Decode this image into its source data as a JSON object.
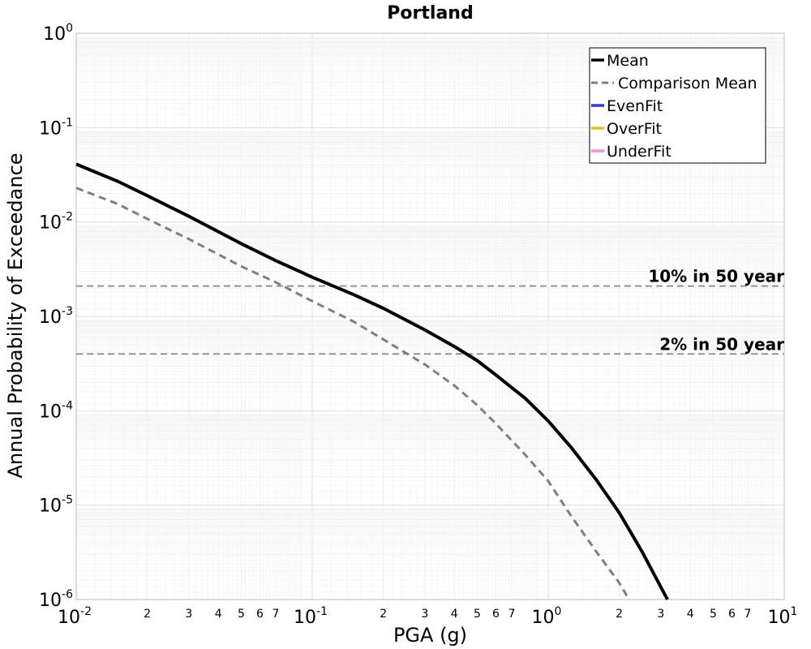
{
  "chart_data": {
    "type": "line",
    "title": "Portland",
    "xlabel": "PGA (g)",
    "ylabel": "Annual Probability of Exceedance",
    "xscale": "log",
    "yscale": "log",
    "xlim": [
      0.01,
      10
    ],
    "ylim": [
      1e-06,
      1
    ],
    "grid": true,
    "legend_position": "top-right",
    "x_major_ticks": [
      {
        "base": "10",
        "exp": "-2"
      },
      {
        "base": "10",
        "exp": "-1"
      },
      {
        "base": "10",
        "exp": "0"
      },
      {
        "base": "10",
        "exp": "1"
      }
    ],
    "y_major_ticks": [
      {
        "base": "10",
        "exp": "-6"
      },
      {
        "base": "10",
        "exp": "-5"
      },
      {
        "base": "10",
        "exp": "-4"
      },
      {
        "base": "10",
        "exp": "-3"
      },
      {
        "base": "10",
        "exp": "-2"
      },
      {
        "base": "10",
        "exp": "-1"
      },
      {
        "base": "10",
        "exp": "0"
      }
    ],
    "x_minor_tick_labels": [
      "2",
      "3",
      "4",
      "5",
      "6",
      "7"
    ],
    "series": [
      {
        "name": "Mean",
        "color": "#000000",
        "style": "solid",
        "x": [
          0.01,
          0.015,
          0.02,
          0.03,
          0.05,
          0.07,
          0.1,
          0.15,
          0.2,
          0.3,
          0.4,
          0.5,
          0.6,
          0.8,
          1.0,
          1.25,
          1.6,
          2.0,
          2.5,
          3.2
        ],
        "y": [
          0.041,
          0.027,
          0.019,
          0.0115,
          0.0059,
          0.0039,
          0.0026,
          0.0017,
          0.00122,
          0.00072,
          0.00048,
          0.00034,
          0.00024,
          0.000135,
          7.8e-05,
          4.1e-05,
          1.85e-05,
          8.3e-06,
          3.2e-06,
          1e-06
        ]
      },
      {
        "name": "Comparison Mean",
        "color": "#7f7f7f",
        "style": "dashed",
        "x": [
          0.01,
          0.015,
          0.02,
          0.03,
          0.05,
          0.07,
          0.1,
          0.15,
          0.2,
          0.3,
          0.4,
          0.5,
          0.6,
          0.8,
          1.0,
          1.25,
          1.6,
          2.0,
          2.2
        ],
        "y": [
          0.023,
          0.0155,
          0.0108,
          0.0066,
          0.0034,
          0.0023,
          0.00145,
          0.00088,
          0.00057,
          0.00031,
          0.000185,
          0.000115,
          7.3e-05,
          3.4e-05,
          1.8e-05,
          7.7e-06,
          3.2e-06,
          1.5e-06,
          1e-06
        ]
      },
      {
        "name": "EvenFit",
        "color": "#1f3fe0",
        "style": "solid",
        "x": [],
        "y": []
      },
      {
        "name": "OverFit",
        "color": "#e8c21a",
        "style": "solid",
        "x": [],
        "y": []
      },
      {
        "name": "UnderFit",
        "color": "#f08ee0",
        "style": "solid",
        "x": [],
        "y": []
      }
    ],
    "reference_lines": [
      {
        "label": "10% in 50 year",
        "y": 0.0021
      },
      {
        "label": "2% in 50 year",
        "y": 0.0004
      }
    ]
  }
}
